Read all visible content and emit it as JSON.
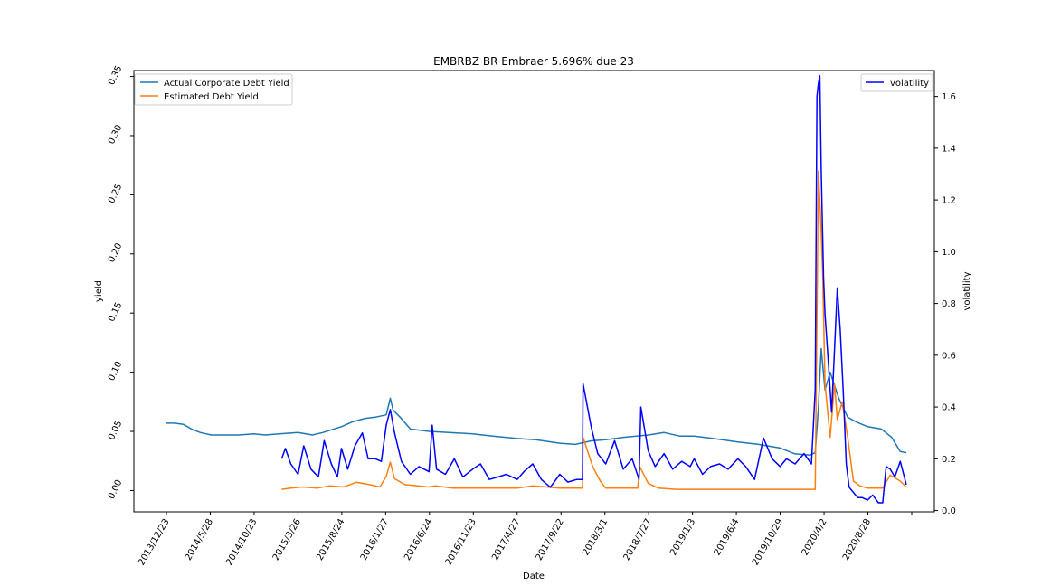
{
  "chart_data": {
    "type": "line",
    "title": "EMBRBZ BR Embraer 5.696% due 23",
    "xlabel": "Date",
    "ylabel": "yield",
    "y2label": "volatility",
    "x_ticks": [
      "2013/12/23",
      "2014/5/28",
      "2014/10/23",
      "2015/3/26",
      "2015/8/24",
      "2016/1/27",
      "2016/6/24",
      "2016/11/23",
      "2017/4/27",
      "2017/9/22",
      "2018/3/1",
      "2018/7/27",
      "2019/1/3",
      "2019/6/4",
      "2019/10/29",
      "2020/4/2",
      "2020/8/28"
    ],
    "ylim": [
      -0.018,
      0.355
    ],
    "y_ticks": [
      "0.00",
      "0.05",
      "0.10",
      "0.15",
      "0.20",
      "0.25",
      "0.30",
      "0.35"
    ],
    "y2lim": [
      -0.005,
      1.7
    ],
    "y2_ticks": [
      "0.0",
      "0.2",
      "0.4",
      "0.6",
      "0.8",
      "1.0",
      "1.2",
      "1.4",
      "1.6"
    ],
    "grid": false,
    "legend_left_placement": "upper-left",
    "legend_right_placement": "upper-right",
    "series": [
      {
        "name": "Actual Corporate Debt Yield",
        "axis": "left",
        "color": "#1f77b4",
        "x": [
          "2013/12/23",
          "2014/1/20",
          "2014/2/20",
          "2014/3/20",
          "2014/4/20",
          "2014/5/28",
          "2014/7/1",
          "2014/8/1",
          "2014/9/1",
          "2014/10/23",
          "2014/12/1",
          "2015/1/20",
          "2015/3/26",
          "2015/5/15",
          "2015/6/20",
          "2015/8/24",
          "2015/9/30",
          "2015/11/15",
          "2015/12/20",
          "2016/1/27",
          "2016/2/10",
          "2016/2/20",
          "2016/3/15",
          "2016/4/20",
          "2016/6/24",
          "2016/9/1",
          "2016/11/23",
          "2017/2/1",
          "2017/4/27",
          "2017/6/30",
          "2017/9/22",
          "2017/11/15",
          "2018/1/10",
          "2018/3/1",
          "2018/5/1",
          "2018/7/27",
          "2018/9/20",
          "2018/11/15",
          "2019/1/3",
          "2019/3/10",
          "2019/6/4",
          "2019/8/15",
          "2019/10/29",
          "2019/12/20",
          "2020/2/10",
          "2020/2/28",
          "2020/3/10",
          "2020/3/20",
          "2020/4/2",
          "2020/4/20",
          "2020/5/20",
          "2020/6/20",
          "2020/7/20",
          "2020/8/28",
          "2020/10/15",
          "2020/11/20",
          "2020/12/20",
          "2021/1/10"
        ],
        "values": [
          0.057,
          0.057,
          0.056,
          0.052,
          0.049,
          0.047,
          0.047,
          0.047,
          0.047,
          0.048,
          0.047,
          0.048,
          0.049,
          0.047,
          0.049,
          0.054,
          0.058,
          0.061,
          0.062,
          0.064,
          0.078,
          0.068,
          0.062,
          0.052,
          0.05,
          0.049,
          0.048,
          0.046,
          0.044,
          0.043,
          0.04,
          0.039,
          0.042,
          0.043,
          0.045,
          0.047,
          0.049,
          0.046,
          0.046,
          0.044,
          0.041,
          0.039,
          0.036,
          0.031,
          0.03,
          0.032,
          0.07,
          0.12,
          0.085,
          0.1,
          0.078,
          0.062,
          0.058,
          0.054,
          0.052,
          0.045,
          0.033,
          0.032
        ]
      },
      {
        "name": "Estimated Debt Yield",
        "axis": "left",
        "color": "#ff7f0e",
        "x": [
          "2015/1/28",
          "2015/3/1",
          "2015/4/10",
          "2015/6/1",
          "2015/7/15",
          "2015/9/1",
          "2015/10/15",
          "2015/11/30",
          "2016/1/5",
          "2016/1/27",
          "2016/2/10",
          "2016/2/25",
          "2016/4/1",
          "2016/6/24",
          "2016/7/15",
          "2016/9/15",
          "2016/11/23",
          "2017/2/1",
          "2017/4/27",
          "2017/6/20",
          "2017/9/22",
          "2017/12/10",
          "2017/12/12",
          "2018/1/15",
          "2018/2/10",
          "2018/3/1",
          "2018/5/1",
          "2018/6/20",
          "2018/6/28",
          "2018/7/27",
          "2018/9/1",
          "2018/11/1",
          "2019/1/3",
          "2019/6/4",
          "2019/10/29",
          "2020/2/15",
          "2020/2/28",
          "2020/3/10",
          "2020/3/18",
          "2020/3/25",
          "2020/4/2",
          "2020/4/20",
          "2020/5/5",
          "2020/5/15",
          "2020/6/1",
          "2020/6/20",
          "2020/7/10",
          "2020/8/1",
          "2020/8/28",
          "2020/10/20",
          "2020/11/15",
          "2020/12/20",
          "2021/1/10"
        ],
        "values": [
          0.001,
          0.002,
          0.003,
          0.002,
          0.004,
          0.003,
          0.007,
          0.005,
          0.003,
          0.012,
          0.024,
          0.01,
          0.005,
          0.003,
          0.004,
          0.002,
          0.002,
          0.002,
          0.002,
          0.004,
          0.002,
          0.002,
          0.045,
          0.02,
          0.008,
          0.002,
          0.002,
          0.002,
          0.02,
          0.006,
          0.002,
          0.001,
          0.001,
          0.001,
          0.001,
          0.001,
          0.001,
          0.27,
          0.23,
          0.185,
          0.09,
          0.045,
          0.09,
          0.06,
          0.075,
          0.045,
          0.008,
          0.004,
          0.002,
          0.002,
          0.013,
          0.008,
          0.003
        ]
      },
      {
        "name": "volatility",
        "axis": "right",
        "color": "#0000ff",
        "x": [
          "2015/1/28",
          "2015/2/10",
          "2015/3/1",
          "2015/3/26",
          "2015/4/15",
          "2015/5/10",
          "2015/6/5",
          "2015/6/25",
          "2015/7/20",
          "2015/8/10",
          "2015/8/24",
          "2015/9/15",
          "2015/10/10",
          "2015/11/5",
          "2015/11/25",
          "2015/12/20",
          "2016/1/10",
          "2016/1/27",
          "2016/2/10",
          "2016/2/25",
          "2016/3/20",
          "2016/4/20",
          "2016/5/20",
          "2016/6/24",
          "2016/7/5",
          "2016/7/20",
          "2016/8/20",
          "2016/9/20",
          "2016/10/20",
          "2016/11/23",
          "2016/12/20",
          "2017/1/20",
          "2017/2/20",
          "2017/3/20",
          "2017/4/27",
          "2017/5/20",
          "2017/6/20",
          "2017/7/20",
          "2017/8/20",
          "2017/9/22",
          "2017/10/20",
          "2017/11/20",
          "2017/12/10",
          "2017/12/12",
          "2018/1/10",
          "2018/2/1",
          "2018/3/1",
          "2018/4/1",
          "2018/5/1",
          "2018/6/1",
          "2018/6/25",
          "2018/7/1",
          "2018/7/27",
          "2018/8/20",
          "2018/9/20",
          "2018/10/20",
          "2018/11/20",
          "2018/12/20",
          "2019/1/3",
          "2019/2/1",
          "2019/3/1",
          "2019/4/1",
          "2019/5/1",
          "2019/6/4",
          "2019/7/1",
          "2019/8/1",
          "2019/9/1",
          "2019/10/1",
          "2019/10/29",
          "2019/11/20",
          "2019/12/20",
          "2020/1/20",
          "2020/2/15",
          "2020/2/28",
          "2020/3/5",
          "2020/3/10",
          "2020/3/15",
          "2020/3/20",
          "2020/3/28",
          "2020/4/2",
          "2020/4/15",
          "2020/4/25",
          "2020/5/5",
          "2020/5/15",
          "2020/5/25",
          "2020/6/5",
          "2020/6/15",
          "2020/6/25",
          "2020/7/10",
          "2020/7/25",
          "2020/8/10",
          "2020/8/28",
          "2020/9/15",
          "2020/10/5",
          "2020/10/20",
          "2020/11/1",
          "2020/11/15",
          "2020/12/1",
          "2020/12/20",
          "2021/1/10"
        ],
        "values": [
          0.2,
          0.24,
          0.18,
          0.14,
          0.25,
          0.16,
          0.13,
          0.27,
          0.18,
          0.13,
          0.24,
          0.16,
          0.25,
          0.3,
          0.2,
          0.2,
          0.19,
          0.33,
          0.39,
          0.3,
          0.19,
          0.14,
          0.17,
          0.15,
          0.33,
          0.16,
          0.14,
          0.2,
          0.13,
          0.16,
          0.18,
          0.12,
          0.13,
          0.14,
          0.12,
          0.15,
          0.18,
          0.12,
          0.09,
          0.14,
          0.11,
          0.12,
          0.12,
          0.49,
          0.32,
          0.22,
          0.18,
          0.27,
          0.16,
          0.2,
          0.12,
          0.4,
          0.23,
          0.17,
          0.22,
          0.16,
          0.19,
          0.17,
          0.2,
          0.14,
          0.17,
          0.18,
          0.16,
          0.2,
          0.17,
          0.12,
          0.28,
          0.2,
          0.17,
          0.2,
          0.18,
          0.22,
          0.18,
          0.47,
          1.6,
          1.65,
          1.68,
          1.32,
          0.9,
          0.76,
          0.55,
          0.38,
          0.62,
          0.86,
          0.7,
          0.45,
          0.18,
          0.09,
          0.07,
          0.05,
          0.05,
          0.04,
          0.06,
          0.03,
          0.03,
          0.17,
          0.16,
          0.13,
          0.19,
          0.1
        ]
      }
    ]
  }
}
